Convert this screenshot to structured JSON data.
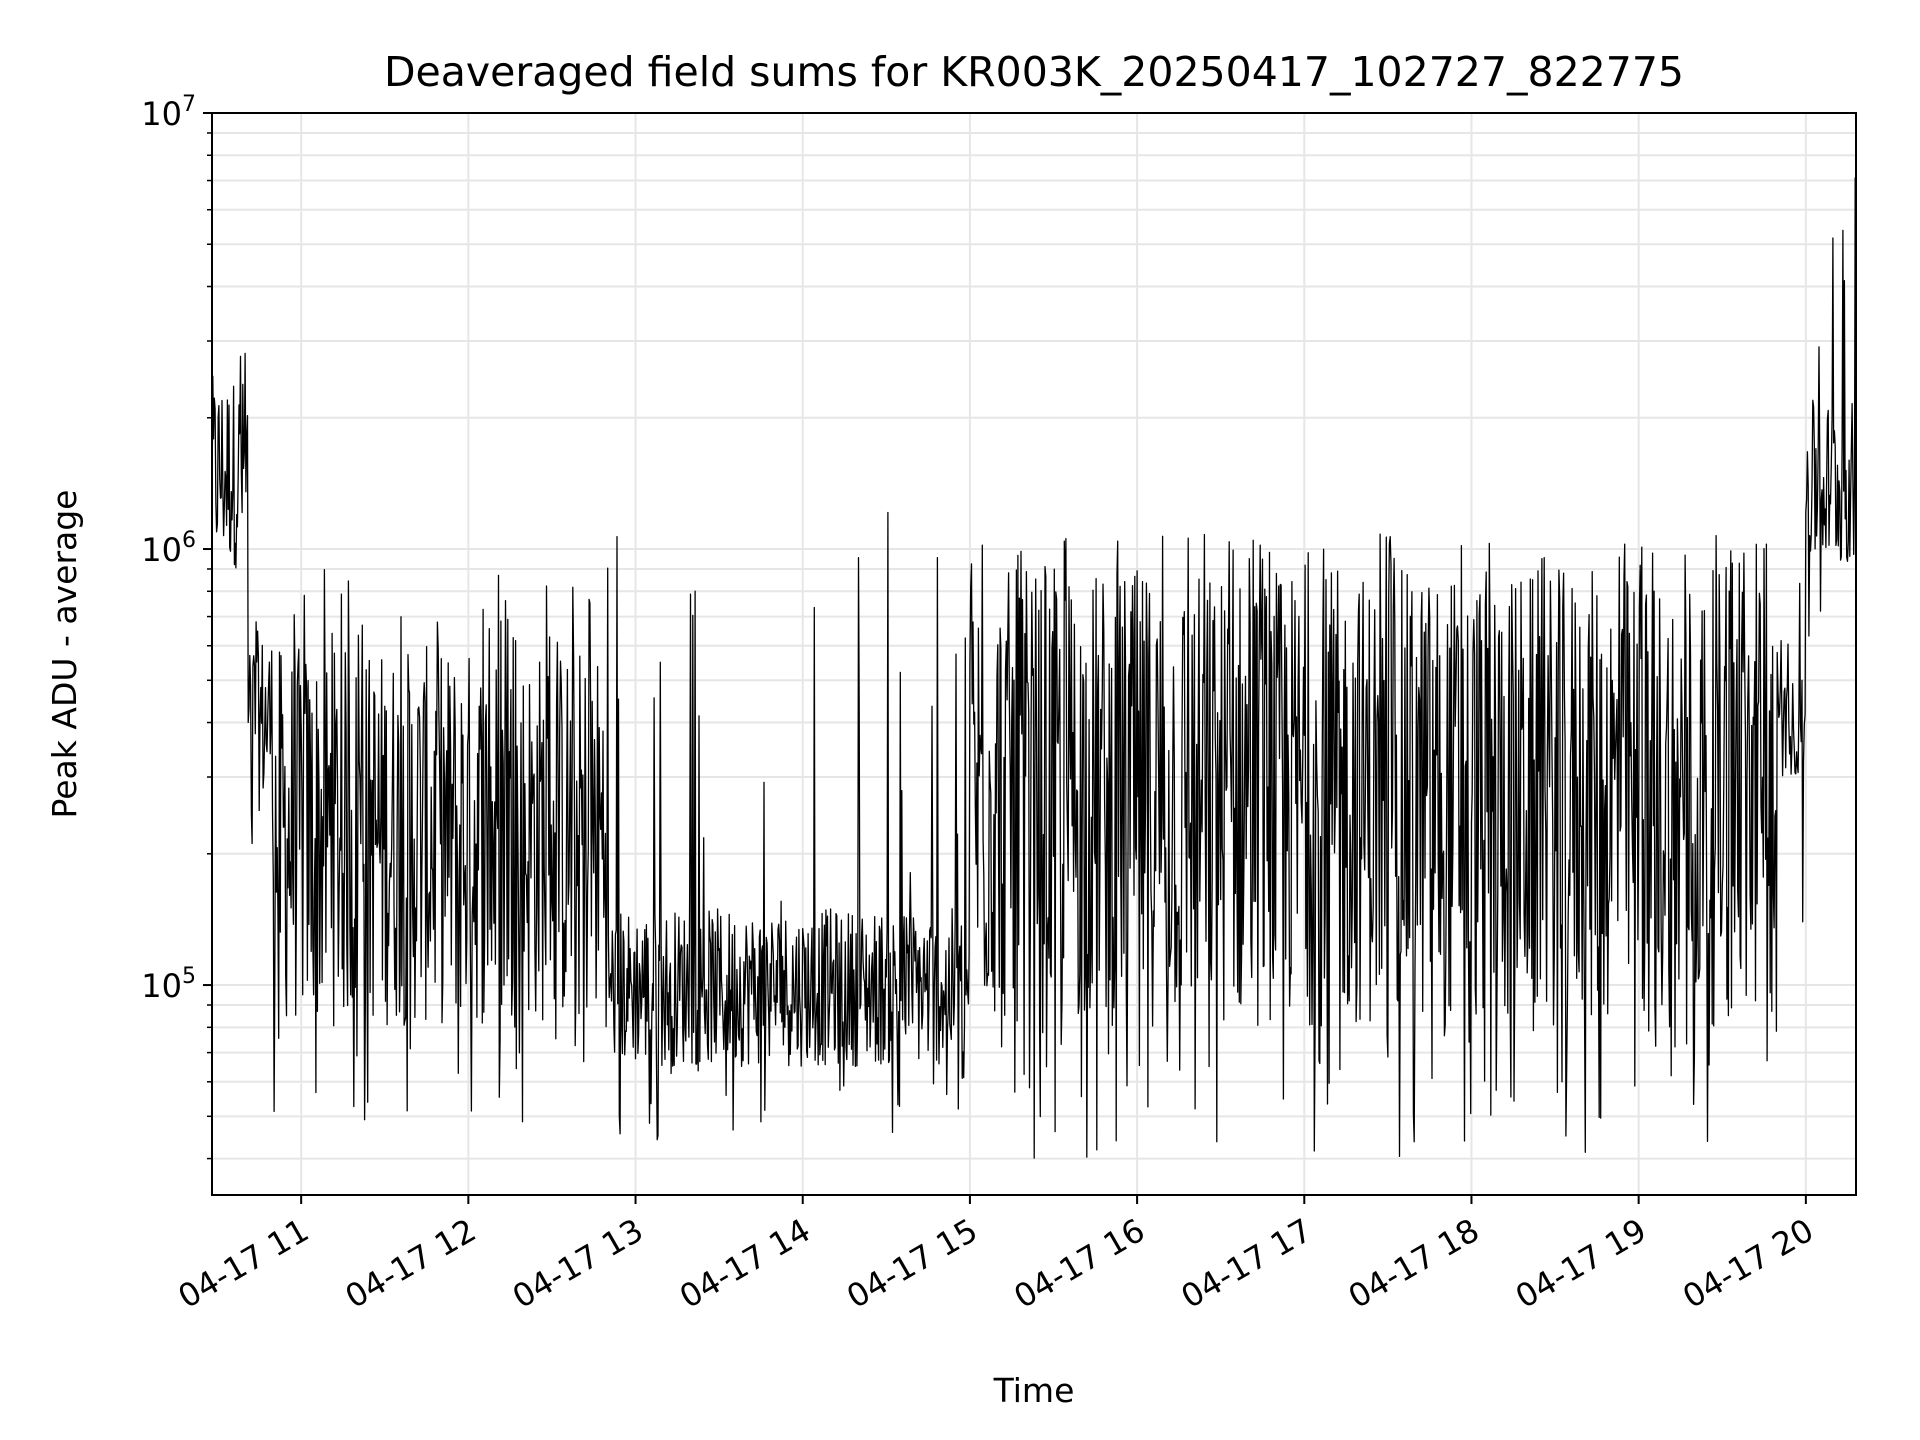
{
  "chart_data": {
    "type": "line",
    "title": "Deaveraged field sums for KR003K_20250417_102727_822775",
    "xlabel": "Time",
    "ylabel": "Peak ADU - average",
    "x_unit": "datetime",
    "xlim": [
      "2025-04-17 10:28",
      "2025-04-17 20:18"
    ],
    "x_ticks": [
      {
        "value": "2025-04-17 11:00",
        "label": "04-17 11"
      },
      {
        "value": "2025-04-17 12:00",
        "label": "04-17 12"
      },
      {
        "value": "2025-04-17 13:00",
        "label": "04-17 13"
      },
      {
        "value": "2025-04-17 14:00",
        "label": "04-17 14"
      },
      {
        "value": "2025-04-17 15:00",
        "label": "04-17 15"
      },
      {
        "value": "2025-04-17 16:00",
        "label": "04-17 16"
      },
      {
        "value": "2025-04-17 17:00",
        "label": "04-17 17"
      },
      {
        "value": "2025-04-17 18:00",
        "label": "04-17 18"
      },
      {
        "value": "2025-04-17 19:00",
        "label": "04-17 19"
      },
      {
        "value": "2025-04-17 20:00",
        "label": "04-17 20"
      }
    ],
    "y_scale": "log",
    "ylim": [
      33000,
      10000000
    ],
    "y_ticks": [
      {
        "value": 100000,
        "base": "10",
        "exp": "5"
      },
      {
        "value": 1000000,
        "base": "10",
        "exp": "6"
      },
      {
        "value": 10000000,
        "base": "10",
        "exp": "7"
      }
    ],
    "grid": true,
    "line_color": "#000000",
    "grid_color": "#e6e6e6",
    "series": [
      {
        "segments": [
          {
            "start": "2025-04-17 10:28",
            "end": "2025-04-17 10:41",
            "high": 2500000,
            "low": 900000,
            "spike_max": 3000000,
            "spike_min": 700000
          },
          {
            "start": "2025-04-17 10:41",
            "end": "2025-04-17 10:50",
            "high": 650000,
            "low": 250000,
            "spike_max": 750000,
            "spike_min": 200000
          },
          {
            "start": "2025-04-17 10:50",
            "end": "2025-04-17 12:50",
            "high": 600000,
            "low": 80000,
            "spike_max": 900000,
            "spike_min": 48000
          },
          {
            "start": "2025-04-17 12:50",
            "end": "2025-04-17 15:00",
            "high": 150000,
            "low": 65000,
            "spike_max": 1250000,
            "spike_min": 43000
          },
          {
            "start": "2025-04-17 15:00",
            "end": "2025-04-17 19:50",
            "high": 900000,
            "low": 80000,
            "spike_max": 1100000,
            "spike_min": 40000
          },
          {
            "start": "2025-04-17 19:50",
            "end": "2025-04-17 20:00",
            "high": 500000,
            "low": 300000,
            "spike_max": 1500000,
            "spike_min": 110000
          },
          {
            "start": "2025-04-17 20:00",
            "end": "2025-04-17 20:18",
            "high": 2200000,
            "low": 900000,
            "spike_max": 8000000,
            "spike_min": 600000
          }
        ]
      }
    ]
  }
}
